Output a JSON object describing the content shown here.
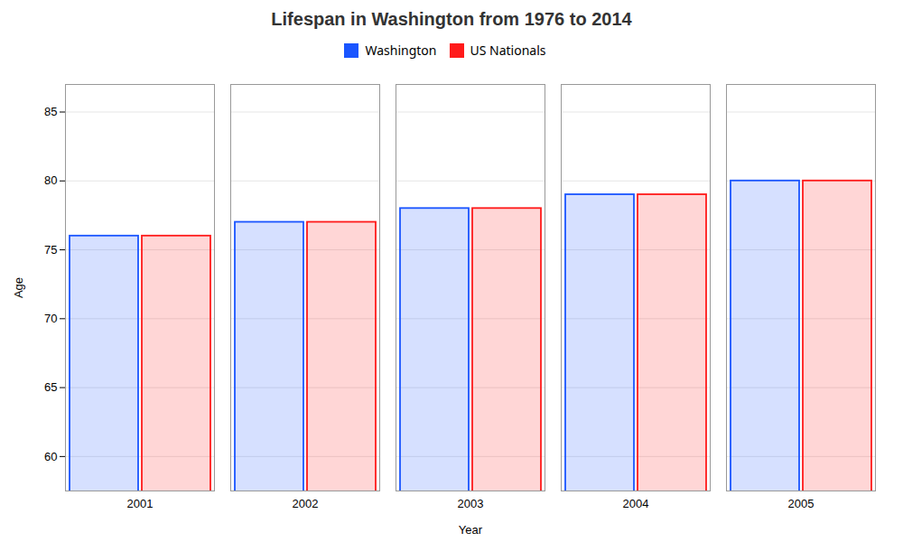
{
  "chart_data": {
    "type": "bar",
    "title": "Lifespan in Washington from 1976 to 2014",
    "xlabel": "Year",
    "ylabel": "Age",
    "categories": [
      "2001",
      "2002",
      "2003",
      "2004",
      "2005"
    ],
    "series": [
      {
        "name": "Washington",
        "color": "#1a55ff",
        "values": [
          76,
          77,
          78,
          79,
          80
        ]
      },
      {
        "name": "US Nationals",
        "color": "#ff1a1a",
        "values": [
          76,
          77,
          78,
          79,
          80
        ]
      }
    ],
    "ylim": [
      57.5,
      87
    ],
    "yticks": [
      60,
      65,
      70,
      75,
      80,
      85
    ],
    "grid": true,
    "legend": "top"
  }
}
